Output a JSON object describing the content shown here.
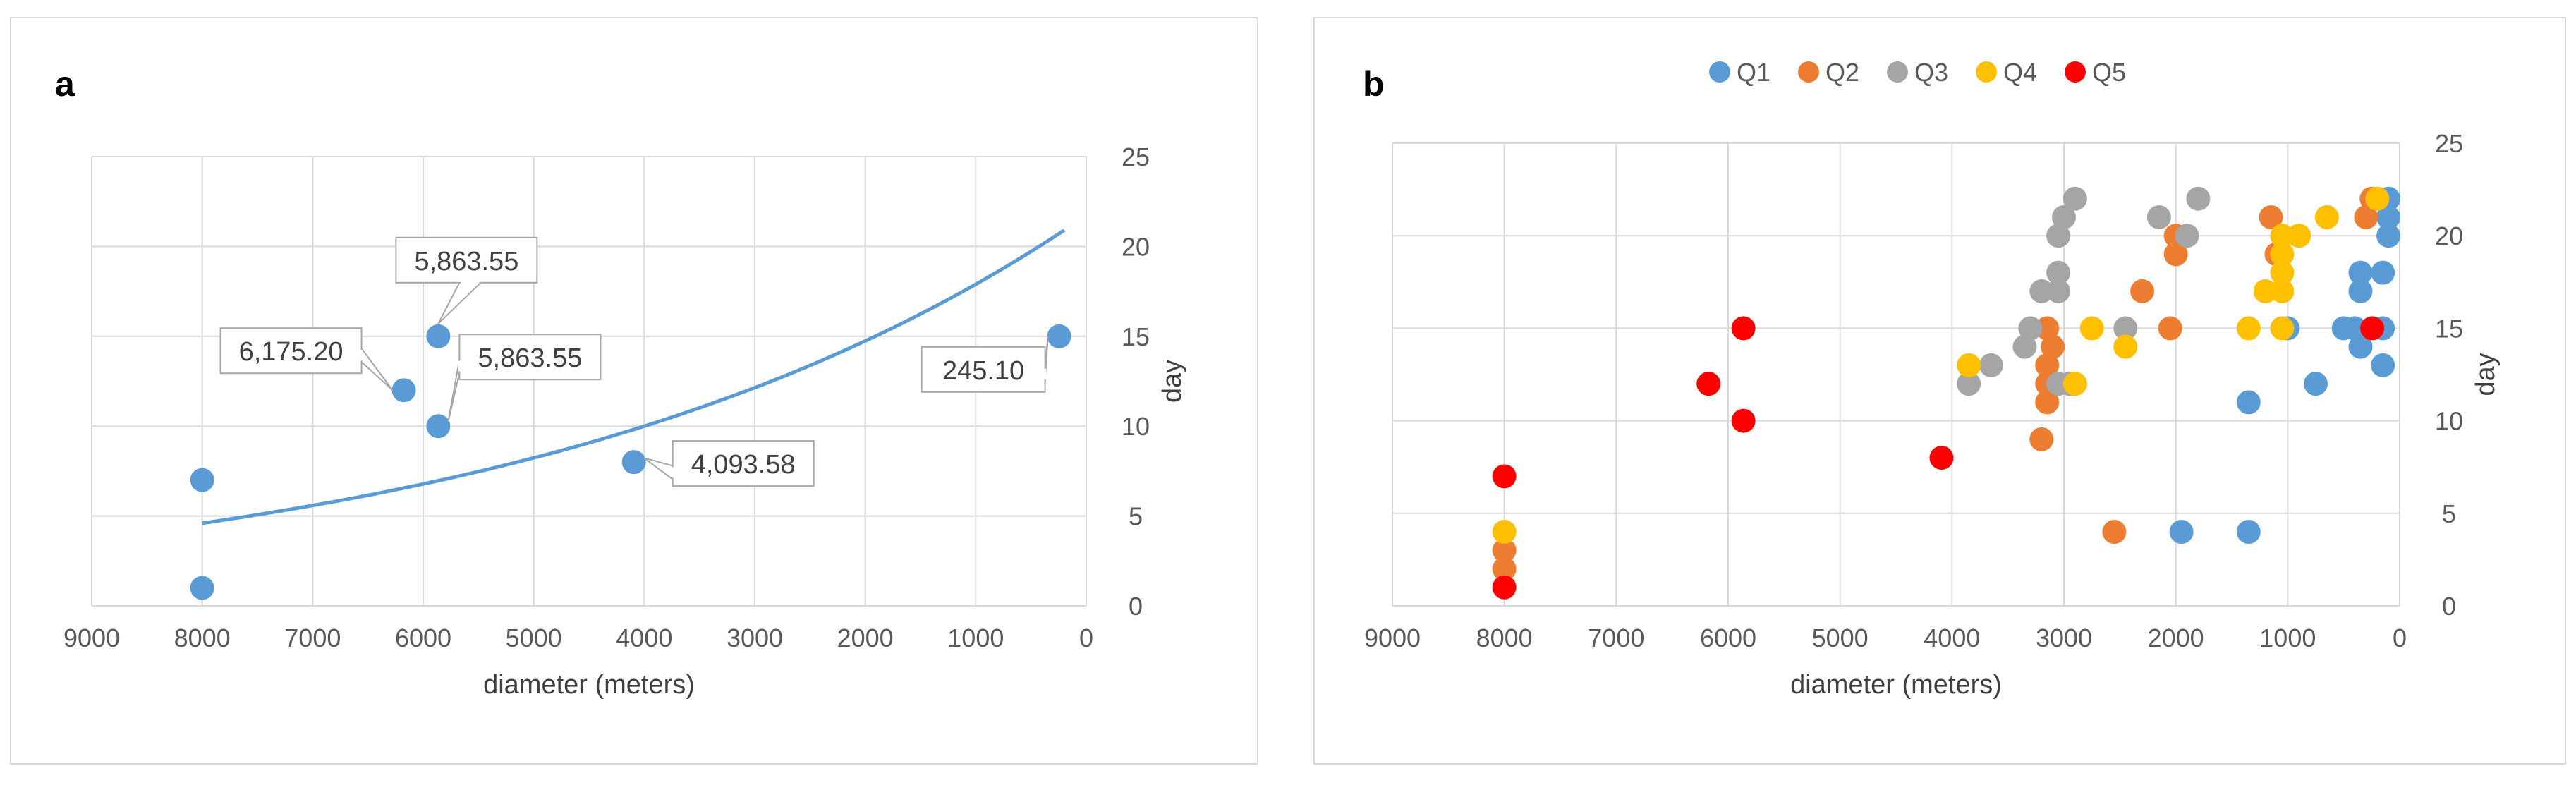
{
  "chart_data": [
    {
      "type": "scatter",
      "panel_label": "a",
      "xlabel": "diameter (meters)",
      "ylabel": "day",
      "xlim": [
        0,
        9000
      ],
      "x_reversed": true,
      "ylim": [
        0,
        25
      ],
      "x_ticks": [
        9000,
        8000,
        7000,
        6000,
        5000,
        4000,
        3000,
        2000,
        1000,
        0
      ],
      "y_ticks": [
        0,
        5,
        10,
        15,
        20,
        25
      ],
      "y_axis_side": "right",
      "grid": true,
      "point_color": "#5b9bd5",
      "points": [
        {
          "x": 8000,
          "y": 7
        },
        {
          "x": 8000,
          "y": 1
        },
        {
          "x": 6175.2,
          "y": 12
        },
        {
          "x": 5863.55,
          "y": 15
        },
        {
          "x": 5863.55,
          "y": 10
        },
        {
          "x": 4093.58,
          "y": 8
        },
        {
          "x": 245.1,
          "y": 15
        }
      ],
      "annotations": [
        {
          "text": "5,863.55",
          "x": 5863.55,
          "y": 15
        },
        {
          "text": "6,175.20",
          "x": 6175.2,
          "y": 12
        },
        {
          "text": "5,863.55",
          "x": 5863.55,
          "y": 10
        },
        {
          "text": "4,093.58",
          "x": 4093.58,
          "y": 8
        },
        {
          "text": "245.10",
          "x": 245.1,
          "y": 15
        }
      ],
      "trendline": {
        "type": "exponential",
        "x_start": 8000,
        "y_start": 4.6,
        "x_end": 200,
        "y_end": 20.9
      }
    },
    {
      "type": "scatter",
      "panel_label": "b",
      "xlabel": "diameter (meters)",
      "ylabel": "day",
      "xlim": [
        0,
        9000
      ],
      "x_reversed": true,
      "ylim": [
        0,
        25
      ],
      "x_ticks": [
        9000,
        8000,
        7000,
        6000,
        5000,
        4000,
        3000,
        2000,
        1000,
        0
      ],
      "y_ticks": [
        0,
        5,
        10,
        15,
        20,
        25
      ],
      "y_axis_side": "right",
      "grid": true,
      "legend_position": "top",
      "series": [
        {
          "name": "Q1",
          "color": "#5b9bd5",
          "points": [
            [
              100,
              22
            ],
            [
              100,
              21
            ],
            [
              100,
              20
            ],
            [
              150,
              18
            ],
            [
              350,
              18
            ],
            [
              350,
              17
            ],
            [
              150,
              15
            ],
            [
              400,
              15
            ],
            [
              500,
              15
            ],
            [
              350,
              14
            ],
            [
              150,
              13
            ],
            [
              750,
              12
            ],
            [
              1350,
              11
            ],
            [
              1000,
              15
            ],
            [
              1950,
              4
            ],
            [
              1350,
              4
            ]
          ]
        },
        {
          "name": "Q2",
          "color": "#ed7d31",
          "points": [
            [
              8000,
              3
            ],
            [
              8000,
              2
            ],
            [
              2550,
              4
            ],
            [
              3200,
              9
            ],
            [
              3150,
              11
            ],
            [
              3150,
              12
            ],
            [
              3150,
              13
            ],
            [
              3100,
              14
            ],
            [
              3150,
              15
            ],
            [
              2050,
              15
            ],
            [
              2300,
              17
            ],
            [
              2000,
              19
            ],
            [
              2000,
              20
            ],
            [
              1150,
              21
            ],
            [
              300,
              21
            ],
            [
              250,
              22
            ],
            [
              200,
              22
            ],
            [
              1100,
              19
            ]
          ]
        },
        {
          "name": "Q3",
          "color": "#a5a5a5",
          "points": [
            [
              3850,
              12
            ],
            [
              3650,
              13
            ],
            [
              3350,
              14
            ],
            [
              3300,
              15
            ],
            [
              3200,
              17
            ],
            [
              3050,
              17
            ],
            [
              3050,
              18
            ],
            [
              3050,
              20
            ],
            [
              3000,
              21
            ],
            [
              2900,
              22
            ],
            [
              2150,
              21
            ],
            [
              1800,
              22
            ],
            [
              1900,
              20
            ],
            [
              2450,
              15
            ],
            [
              3050,
              12
            ],
            [
              2950,
              12
            ]
          ]
        },
        {
          "name": "Q4",
          "color": "#ffc000",
          "points": [
            [
              8000,
              4
            ],
            [
              3850,
              13
            ],
            [
              2750,
              15
            ],
            [
              2450,
              14
            ],
            [
              2900,
              12
            ],
            [
              1350,
              15
            ],
            [
              1050,
              15
            ],
            [
              1050,
              17
            ],
            [
              1200,
              17
            ],
            [
              1050,
              18
            ],
            [
              1050,
              19
            ],
            [
              1050,
              20
            ],
            [
              900,
              20
            ],
            [
              650,
              21
            ],
            [
              200,
              22
            ]
          ]
        },
        {
          "name": "Q5",
          "color": "#ff0000",
          "points": [
            [
              8000,
              7
            ],
            [
              8000,
              1
            ],
            [
              6175.2,
              12
            ],
            [
              5863.55,
              15
            ],
            [
              5863.55,
              10
            ],
            [
              4093.58,
              8
            ],
            [
              245.1,
              15
            ]
          ]
        }
      ]
    }
  ]
}
